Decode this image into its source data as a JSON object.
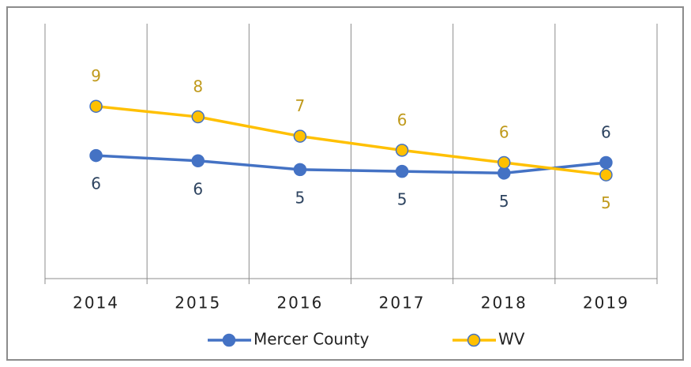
{
  "chart_data": {
    "type": "line",
    "categories": [
      "2014",
      "2015",
      "2016",
      "2017",
      "2018",
      "2019"
    ],
    "series": [
      {
        "name": "Mercer County",
        "color": "#4472c4",
        "label_color": "#2e4460",
        "values": [
          6.0,
          5.7,
          5.2,
          5.1,
          5.0,
          5.6
        ],
        "value_labels": [
          "6",
          "6",
          "5",
          "5",
          "5",
          "6"
        ]
      },
      {
        "name": "WV",
        "color": "#ffc000",
        "label_color": "#c09a1c",
        "values": [
          8.8,
          8.2,
          7.1,
          6.3,
          5.6,
          4.9
        ],
        "value_labels": [
          "9",
          "8",
          "7",
          "6",
          "6",
          "5"
        ]
      }
    ],
    "ylim": [
      -1,
      13.5
    ],
    "grid": true,
    "legend": "bottom"
  }
}
